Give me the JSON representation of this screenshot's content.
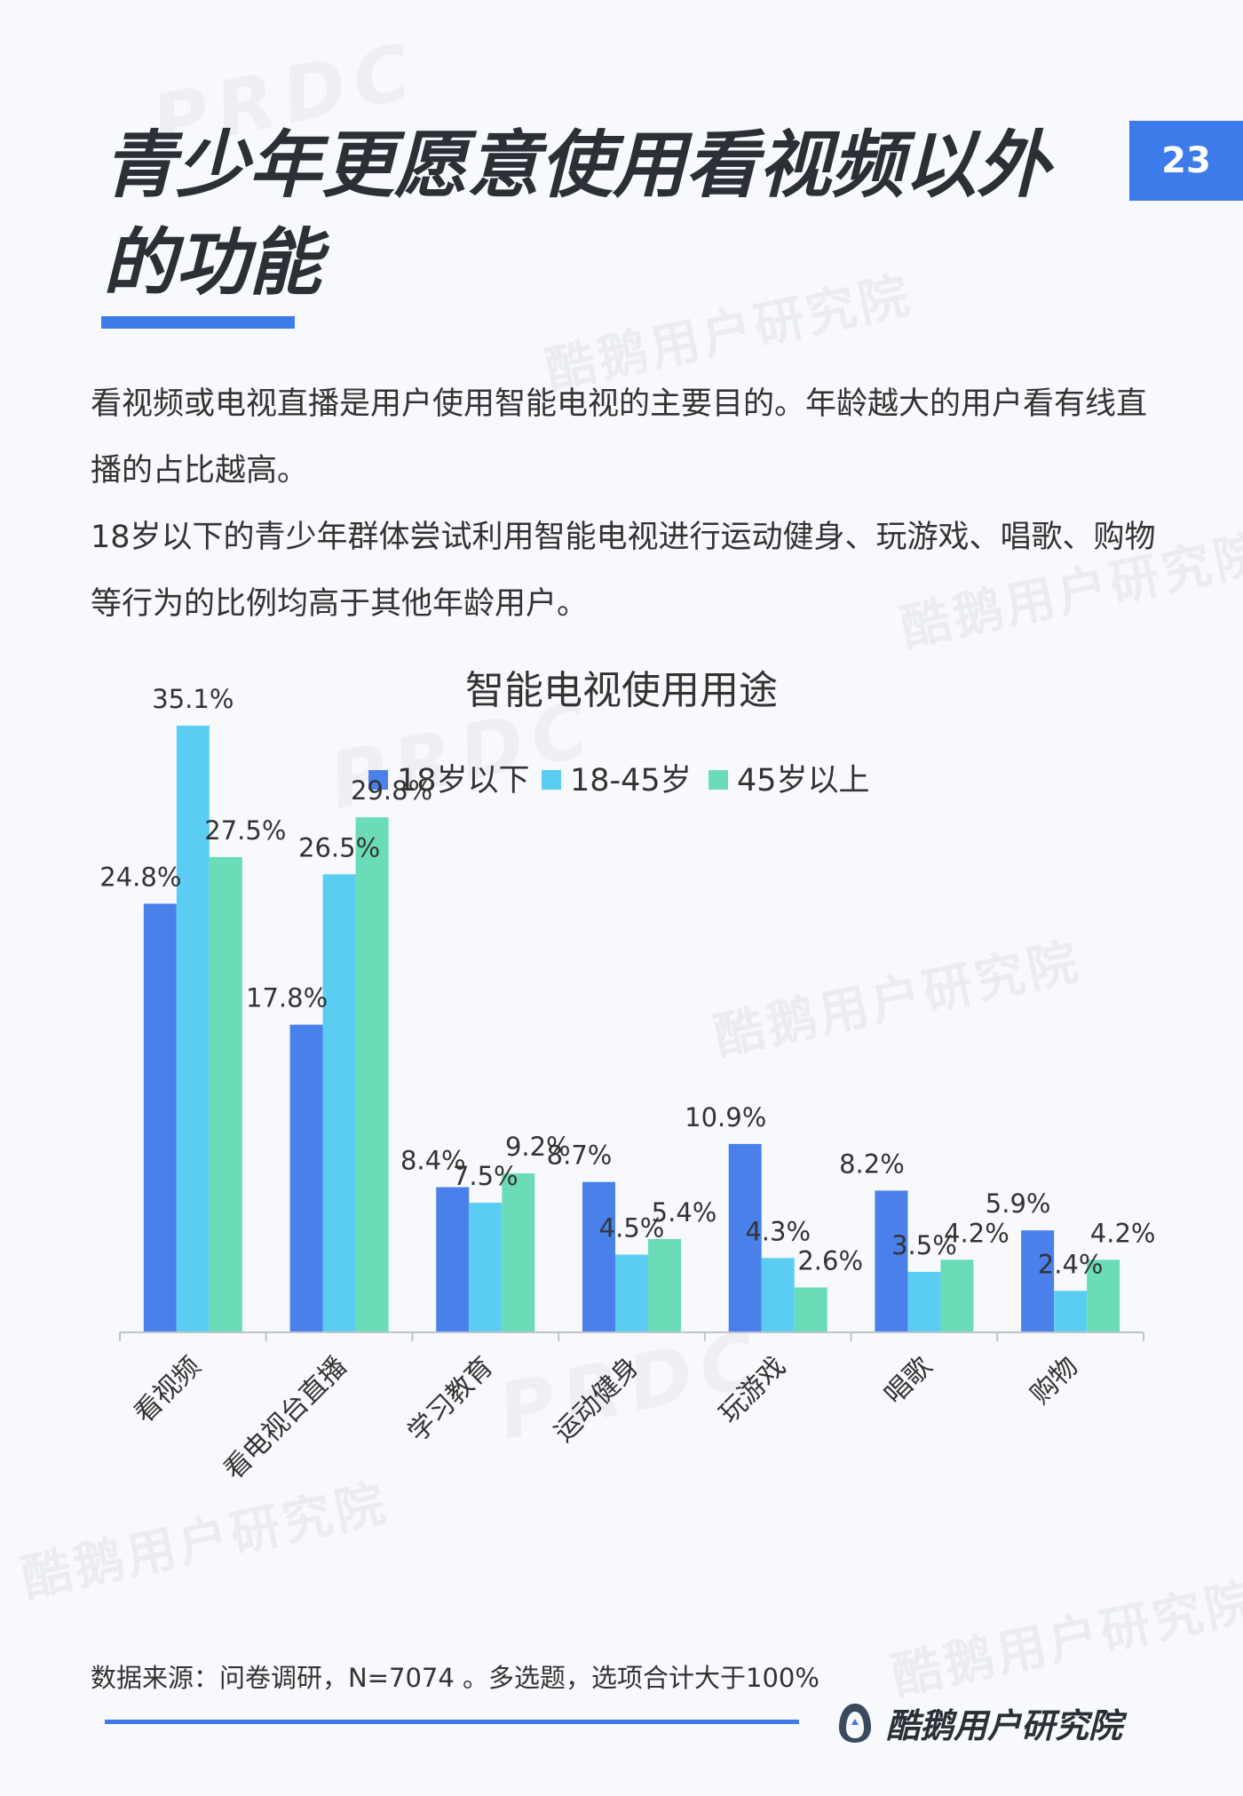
{
  "header": {
    "title": "青少年更愿意使用看视频以外的功能",
    "page_number": "23"
  },
  "intro": {
    "paragraphs": [
      "看视频或电视直播是用户使用智能电视的主要目的。年龄越大的用户看有线直播的占比越高。",
      "18岁以下的青少年群体尝试利用智能电视进行运动健身、玩游戏、唱歌、购物等行为的比例均高于其他年龄用户。"
    ]
  },
  "chart_data": {
    "type": "bar",
    "title": "智能电视使用用途",
    "categories": [
      "看视频",
      "看电视台直播",
      "学习教育",
      "运动健身",
      "玩游戏",
      "唱歌",
      "购物"
    ],
    "series": [
      {
        "name": "18岁以下",
        "color": "#4a80ea",
        "values": [
          24.8,
          17.8,
          8.4,
          8.7,
          10.9,
          8.2,
          5.9
        ],
        "labels": [
          "24.8%",
          "17.8%",
          "8.4%",
          "8.7%",
          "10.9%",
          "8.2%",
          "5.9%"
        ]
      },
      {
        "name": "18-45岁",
        "color": "#5bcdf3",
        "values": [
          35.1,
          26.5,
          7.5,
          4.5,
          4.3,
          3.5,
          2.4
        ],
        "labels": [
          "35.1%",
          "26.5%",
          "7.5%",
          "4.5%",
          "4.3%",
          "3.5%",
          "2.4%"
        ]
      },
      {
        "name": "45岁以上",
        "color": "#6bdcb8",
        "values": [
          27.5,
          29.8,
          9.2,
          5.4,
          2.6,
          4.2,
          4.2
        ],
        "labels": [
          "27.5%",
          "29.8%",
          "9.2%",
          "5.4%",
          "2.6%",
          "4.2%",
          "4.2%"
        ]
      }
    ],
    "ylim": [
      0,
      37
    ],
    "grid": false,
    "legend": "top"
  },
  "footer": {
    "source": "数据来源：问卷调研，N=7074 。多选题，选项合计大于100%",
    "brand": "酷鹅用户研究院"
  },
  "watermarks": {
    "primary": "酷鹅用户研究院",
    "logo": "PRDC"
  }
}
